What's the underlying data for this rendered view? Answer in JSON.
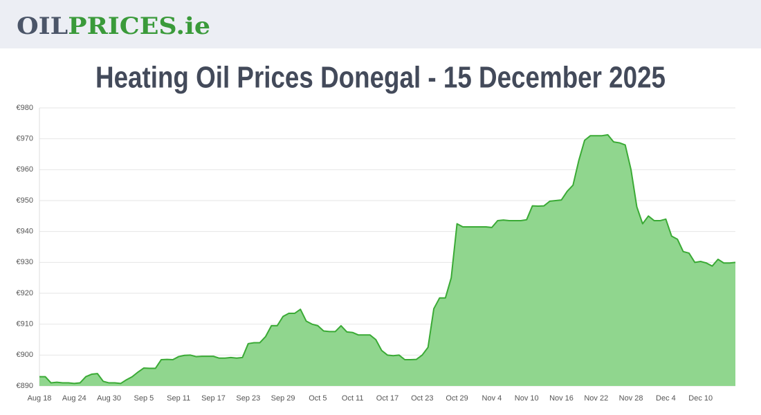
{
  "header": {
    "logo": [
      "OIL",
      "PRICES",
      ".ie"
    ]
  },
  "chart_data": {
    "type": "area",
    "title": "Heating Oil Prices Donegal - 15 December 2025",
    "categories": [
      "Aug 18",
      null,
      null,
      null,
      null,
      null,
      "Aug 24",
      null,
      null,
      null,
      null,
      null,
      "Aug 30",
      null,
      null,
      null,
      null,
      null,
      "Sep 5",
      null,
      null,
      null,
      null,
      null,
      "Sep 11",
      null,
      null,
      null,
      null,
      null,
      "Sep 17",
      null,
      null,
      null,
      null,
      null,
      "Sep 23",
      null,
      null,
      null,
      null,
      null,
      "Sep 29",
      null,
      null,
      null,
      null,
      null,
      "Oct 5",
      null,
      null,
      null,
      null,
      null,
      "Oct 11",
      null,
      null,
      null,
      null,
      null,
      "Oct 17",
      null,
      null,
      null,
      null,
      null,
      "Oct 23",
      null,
      null,
      null,
      null,
      null,
      "Oct 29",
      null,
      null,
      null,
      null,
      null,
      "Nov 4",
      null,
      null,
      null,
      null,
      null,
      "Nov 10",
      null,
      null,
      null,
      null,
      null,
      "Nov 16",
      null,
      null,
      null,
      null,
      null,
      "Nov 22",
      null,
      null,
      null,
      null,
      null,
      "Nov 28",
      null,
      null,
      null,
      null,
      null,
      "Dec 4",
      null,
      null,
      null,
      null,
      null,
      "Dec 10",
      null,
      null,
      null,
      null,
      null,
      null
    ],
    "values": [
      893,
      893,
      891,
      891.2,
      891,
      891,
      890.8,
      891,
      893,
      893.8,
      894,
      891.5,
      891,
      891,
      890.8,
      892,
      893,
      894.5,
      895.8,
      895.7,
      895.7,
      898.5,
      898.6,
      898.5,
      899.5,
      899.9,
      900,
      899.5,
      899.6,
      899.6,
      899.6,
      899,
      899,
      899.2,
      899,
      899.2,
      903.7,
      904,
      904,
      906,
      909.5,
      909.5,
      912.5,
      913.5,
      913.5,
      914.8,
      911,
      910,
      909.5,
      907.8,
      907.6,
      907.6,
      909.5,
      907.5,
      907.3,
      906.5,
      906.5,
      906.5,
      905,
      901.5,
      900,
      899.8,
      900,
      898.5,
      898.5,
      898.6,
      900,
      902.5,
      915,
      918.5,
      918.5,
      925,
      942.5,
      941.5,
      941.5,
      941.5,
      941.5,
      941.5,
      941.3,
      943.5,
      943.7,
      943.5,
      943.5,
      943.5,
      943.8,
      948.3,
      948.2,
      948.3,
      949.8,
      950,
      950.2,
      953,
      955,
      963,
      969.5,
      971,
      971,
      971,
      971.3,
      969,
      968.7,
      968,
      960,
      948,
      942.5,
      945,
      943.5,
      943.5,
      944,
      938.5,
      937.5,
      933.5,
      933,
      930,
      930.3,
      929.8,
      928.8,
      931,
      929.8,
      929.8,
      930
    ],
    "color": "#3aaa35",
    "fill": "#90d68e",
    "ylim": [
      890,
      980
    ],
    "yticks": [
      {
        "value": 890,
        "label": "€890"
      },
      {
        "value": 900,
        "label": "€900"
      },
      {
        "value": 910,
        "label": "€910"
      },
      {
        "value": 920,
        "label": "€920"
      },
      {
        "value": 930,
        "label": "€930"
      },
      {
        "value": 940,
        "label": "€940"
      },
      {
        "value": 950,
        "label": "€950"
      },
      {
        "value": 960,
        "label": "€960"
      },
      {
        "value": 970,
        "label": "€970"
      },
      {
        "value": 980,
        "label": "€980"
      }
    ],
    "grid": true
  }
}
